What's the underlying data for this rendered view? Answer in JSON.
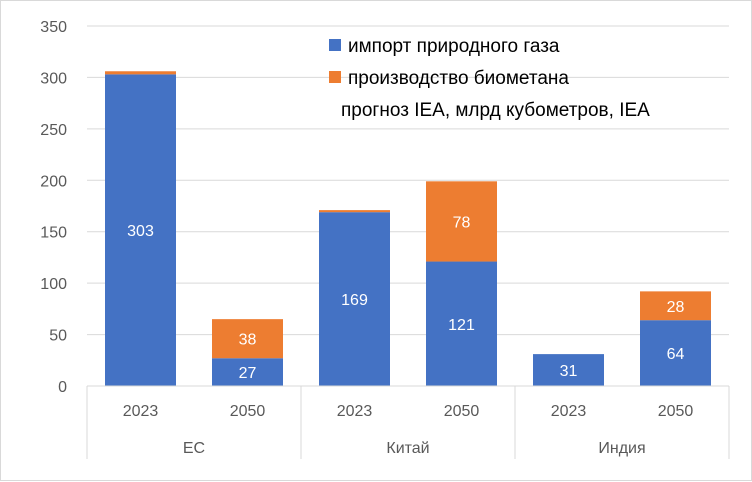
{
  "chart_data": {
    "type": "bar",
    "stacked": true,
    "groups": [
      {
        "label": "ЕС",
        "categories": [
          "2023",
          "2050"
        ]
      },
      {
        "label": "Китай",
        "categories": [
          "2023",
          "2050"
        ]
      },
      {
        "label": "Индия",
        "categories": [
          "2023",
          "2050"
        ]
      }
    ],
    "series": [
      {
        "name": "импорт природного газа",
        "color": "#4472c4",
        "values": [
          303,
          27,
          169,
          121,
          31,
          64
        ],
        "labels": [
          "303",
          "27",
          "169",
          "121",
          "31",
          "64"
        ]
      },
      {
        "name": "производство биометана",
        "color": "#ed7d31",
        "values": [
          3,
          38,
          2,
          78,
          0,
          28
        ],
        "labels": [
          "",
          "38",
          "",
          "78",
          "",
          "28"
        ]
      }
    ],
    "subtitle": "прогноз IEA, млрд кубометров, IEA",
    "ylim": [
      0,
      350
    ],
    "yticks": [
      "0",
      "50",
      "100",
      "150",
      "200",
      "250",
      "300",
      "350"
    ],
    "grid": true,
    "legend_position": "top-right"
  }
}
